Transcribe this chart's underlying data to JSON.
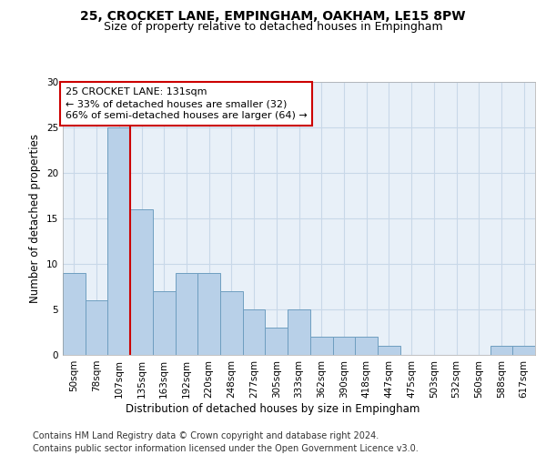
{
  "title1": "25, CROCKET LANE, EMPINGHAM, OAKHAM, LE15 8PW",
  "title2": "Size of property relative to detached houses in Empingham",
  "xlabel": "Distribution of detached houses by size in Empingham",
  "ylabel": "Number of detached properties",
  "categories": [
    "50sqm",
    "78sqm",
    "107sqm",
    "135sqm",
    "163sqm",
    "192sqm",
    "220sqm",
    "248sqm",
    "277sqm",
    "305sqm",
    "333sqm",
    "362sqm",
    "390sqm",
    "418sqm",
    "447sqm",
    "475sqm",
    "503sqm",
    "532sqm",
    "560sqm",
    "588sqm",
    "617sqm"
  ],
  "values": [
    9,
    6,
    25,
    16,
    7,
    9,
    9,
    7,
    5,
    3,
    5,
    2,
    2,
    2,
    1,
    0,
    0,
    0,
    0,
    1,
    1
  ],
  "bar_color": "#b8d0e8",
  "bar_edge_color": "#6e9ec0",
  "vline_color": "#cc0000",
  "annotation_text": "25 CROCKET LANE: 131sqm\n← 33% of detached houses are smaller (32)\n66% of semi-detached houses are larger (64) →",
  "annotation_box_color": "#ffffff",
  "annotation_box_edge": "#cc0000",
  "ylim": [
    0,
    30
  ],
  "yticks": [
    0,
    5,
    10,
    15,
    20,
    25,
    30
  ],
  "footer": "Contains HM Land Registry data © Crown copyright and database right 2024.\nContains public sector information licensed under the Open Government Licence v3.0.",
  "bg_color": "#ffffff",
  "plot_bg_color": "#e8f0f8",
  "grid_color": "#c8d8e8",
  "title1_fontsize": 10,
  "title2_fontsize": 9,
  "xlabel_fontsize": 8.5,
  "ylabel_fontsize": 8.5,
  "tick_fontsize": 7.5,
  "annotation_fontsize": 8,
  "footer_fontsize": 7
}
